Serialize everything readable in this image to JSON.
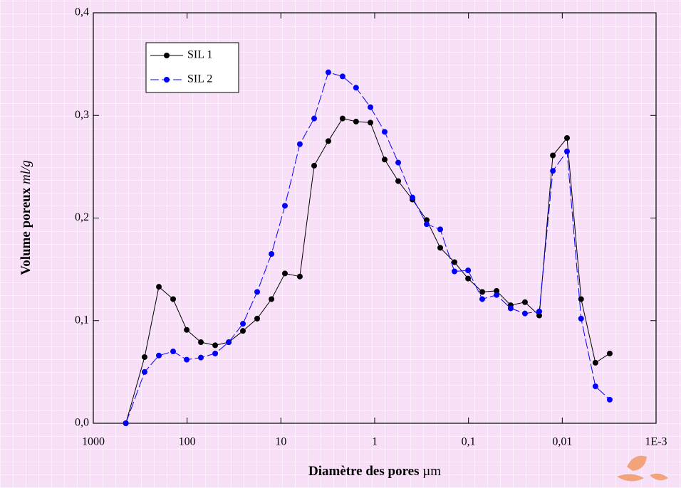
{
  "chart_data": {
    "type": "line",
    "x_label": "Diamètre des pores",
    "x_label_unit": "µm",
    "y_label": "Volume poreux",
    "y_label_unit": "ml/g",
    "x_scale": "log",
    "xlim": [
      1000,
      0.001
    ],
    "xticks": [
      {
        "value": 1000,
        "label": "1000"
      },
      {
        "value": 100,
        "label": "100"
      },
      {
        "value": 10,
        "label": "10"
      },
      {
        "value": 1,
        "label": "1"
      },
      {
        "value": 0.1,
        "label": "0,1"
      },
      {
        "value": 0.01,
        "label": "0,01"
      },
      {
        "value": 0.001,
        "label": "1E-3"
      }
    ],
    "ylim": [
      0,
      0.4
    ],
    "yticks": [
      {
        "value": 0,
        "label": "0,0"
      },
      {
        "value": 0.1,
        "label": "0,1"
      },
      {
        "value": 0.2,
        "label": "0,2"
      },
      {
        "value": 0.3,
        "label": "0,3"
      },
      {
        "value": 0.4,
        "label": "0,4"
      }
    ],
    "legend": "upper left",
    "x": [
      450,
      284,
      200,
      141,
      101,
      71.3,
      50.2,
      36,
      25.4,
      17.9,
      12.6,
      9.06,
      6.28,
      4.42,
      3.12,
      2.2,
      1.58,
      1.11,
      0.783,
      0.561,
      0.396,
      0.279,
      0.2,
      0.141,
      0.101,
      0.0713,
      0.0502,
      0.0355,
      0.025,
      0.0176,
      0.0126,
      0.0089,
      0.0063,
      0.00443,
      0.00312
    ],
    "series": [
      {
        "name": "SIL 1",
        "color": "#000000",
        "line_style": "solid",
        "values": [
          0,
          0.0645,
          0.133,
          0.121,
          0.091,
          0.079,
          0.076,
          0.079,
          0.09,
          0.102,
          0.121,
          0.146,
          0.143,
          0.251,
          0.275,
          0.297,
          0.294,
          0.293,
          0.257,
          0.236,
          0.218,
          0.198,
          0.171,
          0.157,
          0.141,
          0.128,
          0.129,
          0.115,
          0.118,
          0.105,
          0.261,
          0.278,
          0.121,
          0.059,
          0.068
        ]
      },
      {
        "name": "SIL 2",
        "color": "#0000ff",
        "line_style": "dashed",
        "values": [
          0,
          0.05,
          0.066,
          0.07,
          0.062,
          0.064,
          0.068,
          0.079,
          0.097,
          0.128,
          0.165,
          0.212,
          0.272,
          0.297,
          0.342,
          0.338,
          0.327,
          0.308,
          0.284,
          0.254,
          0.22,
          0.194,
          0.189,
          0.148,
          0.149,
          0.121,
          0.125,
          0.112,
          0.107,
          0.109,
          0.246,
          0.265,
          0.102,
          0.036,
          0.023
        ]
      }
    ]
  }
}
